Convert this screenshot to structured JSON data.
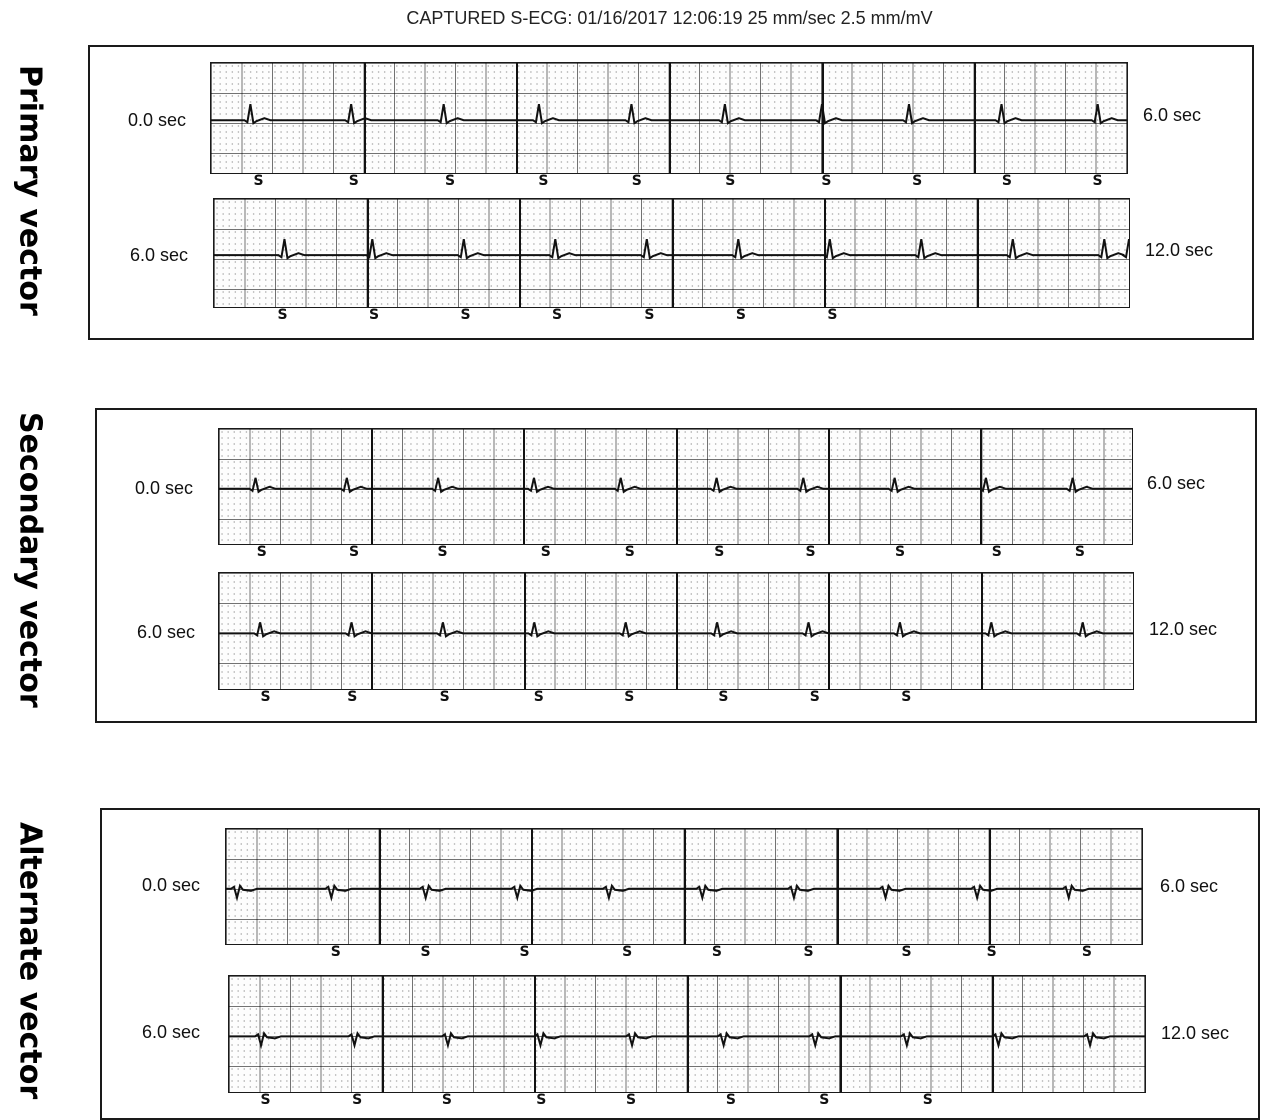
{
  "header": "CAPTURED S-ECG: 01/16/2017 12:06:19 25 mm/sec 2.5 mm/mV",
  "vectors": [
    {
      "label": "Primary vector",
      "inverted": false,
      "rows": [
        {
          "start": "0.0 sec",
          "end": "6.0 sec",
          "beats": [
            0.043,
            0.153,
            0.254,
            0.358,
            0.459,
            0.561,
            0.667,
            0.762,
            0.863,
            0.968
          ],
          "marks": [
            0.053,
            0.157,
            0.262,
            0.364,
            0.466,
            0.568,
            0.673,
            0.772,
            0.87,
            0.969
          ]
        },
        {
          "start": "6.0 sec",
          "end": "12.0 sec",
          "beats": [
            0.077,
            0.173,
            0.273,
            0.373,
            0.473,
            0.573,
            0.673,
            0.773,
            0.873,
            0.973,
            1.0
          ],
          "marks": [
            0.076,
            0.176,
            0.276,
            0.376,
            0.477,
            0.577,
            0.677
          ]
        }
      ]
    },
    {
      "label": "Secondary vector",
      "inverted": false,
      "rows": [
        {
          "start": "0.0 sec",
          "end": "6.0 sec",
          "beats": [
            0.04,
            0.14,
            0.24,
            0.345,
            0.44,
            0.545,
            0.64,
            0.74,
            0.84,
            0.935
          ],
          "marks": [
            0.048,
            0.149,
            0.246,
            0.359,
            0.451,
            0.549,
            0.649,
            0.747,
            0.853,
            0.944
          ]
        },
        {
          "start": "6.0 sec",
          "end": "12.0 sec",
          "beats": [
            0.045,
            0.145,
            0.245,
            0.345,
            0.445,
            0.545,
            0.645,
            0.745,
            0.845,
            0.945
          ],
          "marks": [
            0.052,
            0.147,
            0.248,
            0.351,
            0.45,
            0.553,
            0.653,
            0.753
          ]
        }
      ]
    },
    {
      "label": "Alternate vector",
      "inverted": true,
      "rows": [
        {
          "start": "0.0 sec",
          "end": "6.0 sec",
          "beats": [
            0.012,
            0.115,
            0.218,
            0.318,
            0.418,
            0.52,
            0.62,
            0.72,
            0.82,
            0.92
          ],
          "marks": [
            0.121,
            0.219,
            0.327,
            0.439,
            0.537,
            0.637,
            0.744,
            0.837,
            0.941
          ]
        },
        {
          "start": "6.0 sec",
          "end": "12.0 sec",
          "beats": [
            0.035,
            0.137,
            0.239,
            0.34,
            0.44,
            0.54,
            0.64,
            0.74,
            0.84,
            0.94
          ],
          "marks": [
            0.041,
            0.141,
            0.239,
            0.342,
            0.44,
            0.549,
            0.651,
            0.764
          ]
        }
      ]
    }
  ],
  "colors": {
    "trace": "#111111",
    "grid": "#333333",
    "background": "#ffffff"
  }
}
